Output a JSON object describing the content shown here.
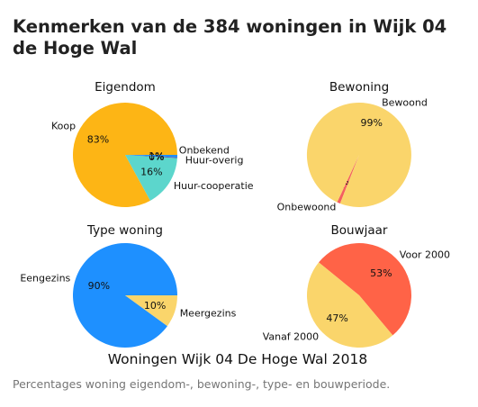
{
  "header": {
    "title": "Kenmerken van de 384 woningen in Wijk 04 de Hoge Wal"
  },
  "figure": {
    "suptitle": "Woningen Wijk 04 De Hoge Wal 2018"
  },
  "footer": {
    "caption": "Percentages woning eigendom-, bewoning-, type- en bouwperiode."
  },
  "colors": {
    "koop": "#FDB515",
    "huur_cooperatie": "#5CD6CC",
    "huur_overig": "#4A5FB0",
    "onbekend": "#1E90FF",
    "bewoond": "#FAD56B",
    "onbewoond": "#F46060",
    "eengezins": "#1E90FF",
    "meergezins": "#FAD56B",
    "voor2000": "#FF6347",
    "vanaf2000": "#FAD56B"
  },
  "chart_data": [
    {
      "type": "pie",
      "title": "Eigendom",
      "slices": [
        {
          "label": "Koop",
          "value": 83,
          "pct_label": "83%",
          "color_key": "koop"
        },
        {
          "label": "Huur-cooperatie",
          "value": 16,
          "pct_label": "16%",
          "color_key": "huur_cooperatie"
        },
        {
          "label": "Huur-overig",
          "value": 0.3,
          "pct_label": "0%",
          "color_key": "huur_overig"
        },
        {
          "label": "Onbekend",
          "value": 0.7,
          "pct_label": "1%",
          "color_key": "onbekend"
        }
      ]
    },
    {
      "type": "pie",
      "title": "Bewoning",
      "slices": [
        {
          "label": "Onbewoond",
          "value": 1,
          "pct_label": "1%",
          "color_key": "onbewoond"
        },
        {
          "label": "Bewoond",
          "value": 99,
          "pct_label": "99%",
          "color_key": "bewoond"
        }
      ]
    },
    {
      "type": "pie",
      "title": "Type woning",
      "slices": [
        {
          "label": "Eengezins",
          "value": 90,
          "pct_label": "90%",
          "color_key": "eengezins"
        },
        {
          "label": "Meergezins",
          "value": 10,
          "pct_label": "10%",
          "color_key": "meergezins"
        }
      ]
    },
    {
      "type": "pie",
      "title": "Bouwjaar",
      "slices": [
        {
          "label": "Voor 2000",
          "value": 53,
          "pct_label": "53%",
          "color_key": "voor2000"
        },
        {
          "label": "Vanaf 2000",
          "value": 47,
          "pct_label": "47%",
          "color_key": "vanaf2000"
        }
      ]
    }
  ]
}
